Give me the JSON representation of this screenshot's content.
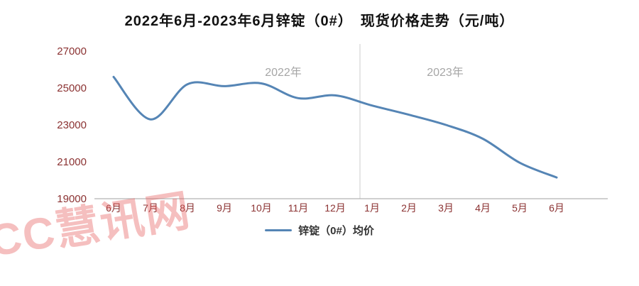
{
  "title": "2022年6月-2023年6月锌锭（0#）　现货价格走势（元/吨）",
  "watermark": "CC慧讯网",
  "legend": {
    "label": "锌锭（0#）均价"
  },
  "chart_data": {
    "type": "line",
    "title": "2022年6月-2023年6月锌锭（0#） 现货价格走势（元/吨）",
    "categories": [
      "6月",
      "7月",
      "8月",
      "9月",
      "10月",
      "11月",
      "12月",
      "1月",
      "2月",
      "3月",
      "4月",
      "5月",
      "6月"
    ],
    "series": [
      {
        "name": "锌锭（0#）均价",
        "values": [
          25600,
          23300,
          25200,
          25100,
          25250,
          24450,
          24600,
          24050,
          23550,
          23000,
          22250,
          20950,
          20150
        ]
      }
    ],
    "xlabel": "",
    "ylabel": "",
    "ylim": [
      19000,
      27000
    ],
    "yticks": [
      19000,
      21000,
      23000,
      25000,
      27000
    ],
    "year_labels": [
      "2022年",
      "2023年"
    ],
    "divider_between": [
      "12月",
      "1月"
    ],
    "grid": false,
    "legend_position": "bottom",
    "line_color": "#5585B5",
    "axis_label_color": "#8B3232",
    "year_label_color": "#A6A6A6",
    "axis_line_color": "#A0A0A0",
    "divider_color": "#CCCCCC"
  }
}
